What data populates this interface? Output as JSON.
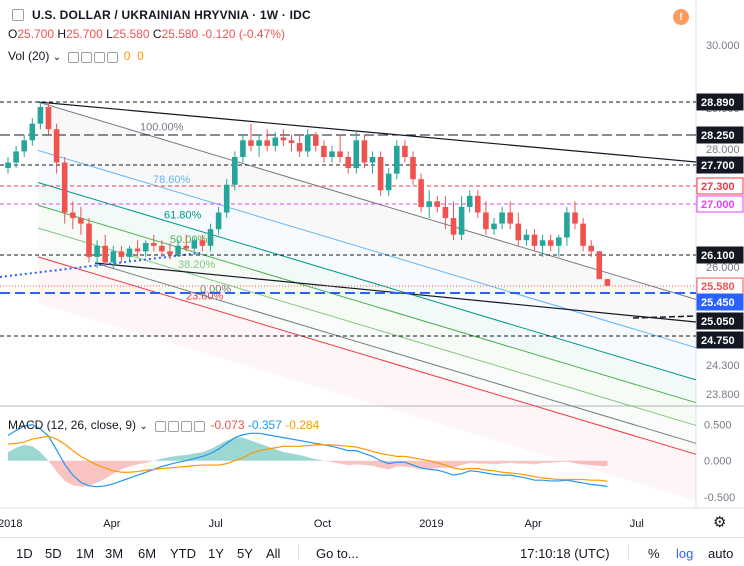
{
  "header": {
    "symbol": "U.S. DOLLAR / UKRAINIAN HRYVNIA · 1W · IDC",
    "ohlc": {
      "o_label": "O",
      "o": "25.700",
      "h_label": "H",
      "h": "25.700",
      "l_label": "L",
      "l": "25.580",
      "c_label": "C",
      "c": "25.580",
      "change": "-0.120 (-0.47%)"
    },
    "vol_label": "Vol (20)",
    "vol_values": [
      "0",
      "0"
    ],
    "alert_icon": "!"
  },
  "macd": {
    "label": "MACD (12, 26, close, 9)",
    "hist": "-0.073",
    "macd": "-0.357",
    "signal": "-0.284"
  },
  "colors": {
    "up": "#26a69a",
    "down": "#ef5350",
    "macd_line": "#2196f3",
    "signal_line": "#ff9800",
    "fib_0": "#787b86",
    "fib_236": "#f23645",
    "fib_382": "#81c784",
    "fib_5": "#4caf50",
    "fib_618": "#009688",
    "fib_786": "#64b5f6",
    "fib_1": "#787b86"
  },
  "toolbar": {
    "ranges": [
      "1D",
      "5D",
      "1M",
      "3M",
      "6M",
      "YTD",
      "1Y",
      "5Y",
      "All"
    ],
    "goto": "Go to...",
    "clock": "17:10:18 (UTC)",
    "percent": "%",
    "log": "log",
    "auto": "auto"
  },
  "chart_data": {
    "type": "candlestick",
    "title": "U.S. DOLLAR / UKRAINIAN HRYVNIA · 1W · IDC",
    "x_ticks": [
      {
        "label": "2018",
        "week": 0
      },
      {
        "label": "Apr",
        "week": 13
      },
      {
        "label": "Jul",
        "week": 26
      },
      {
        "label": "Oct",
        "week": 39
      },
      {
        "label": "2019",
        "week": 52
      },
      {
        "label": "Apr",
        "week": 65
      },
      {
        "label": "Jul",
        "week": 78
      }
    ],
    "y_ticks": [
      "30.000",
      "29.000",
      "28.000",
      "27.000",
      "26.000",
      "25.000",
      "24.300",
      "23.800"
    ],
    "ylim": [
      23.6,
      30.3
    ],
    "price_labels": [
      {
        "value": "28.890",
        "color": "#131722"
      },
      {
        "value": "28.250",
        "color": "#131722"
      },
      {
        "value": "27.700",
        "color": "#131722"
      },
      {
        "value": "27.300",
        "color": "#f23645"
      },
      {
        "value": "27.000",
        "color": "#e040fb"
      },
      {
        "value": "26.100",
        "color": "#131722"
      },
      {
        "value": "25.580",
        "color": "#ef5350"
      },
      {
        "value": "25.450",
        "color": "#2962ff"
      },
      {
        "value": "25.050",
        "color": "#131722"
      },
      {
        "value": "24.750",
        "color": "#131722"
      }
    ],
    "fib_levels": [
      {
        "label": "100.00%",
        "value": 28.89
      },
      {
        "label": "78.60%",
        "value": 28.02
      },
      {
        "label": "61.80%",
        "value": 27.44
      },
      {
        "label": "50.00%",
        "value": 27.03
      },
      {
        "label": "38.20%",
        "value": 26.62
      },
      {
        "label": "23.60%",
        "value": 26.1
      },
      {
        "label": "0.00%",
        "value": 25.3
      }
    ],
    "candles": [
      {
        "o": 27.7,
        "h": 27.9,
        "l": 27.6,
        "c": 27.8
      },
      {
        "o": 27.8,
        "h": 28.1,
        "l": 27.7,
        "c": 28.0
      },
      {
        "o": 28.0,
        "h": 28.3,
        "l": 27.9,
        "c": 28.2
      },
      {
        "o": 28.2,
        "h": 28.6,
        "l": 28.1,
        "c": 28.5
      },
      {
        "o": 28.5,
        "h": 28.9,
        "l": 28.4,
        "c": 28.8
      },
      {
        "o": 28.8,
        "h": 28.89,
        "l": 28.3,
        "c": 28.4
      },
      {
        "o": 28.4,
        "h": 28.5,
        "l": 27.6,
        "c": 27.8
      },
      {
        "o": 27.8,
        "h": 27.9,
        "l": 26.7,
        "c": 26.9
      },
      {
        "o": 26.9,
        "h": 27.1,
        "l": 26.6,
        "c": 26.8
      },
      {
        "o": 26.8,
        "h": 27.0,
        "l": 26.5,
        "c": 26.7
      },
      {
        "o": 26.7,
        "h": 26.8,
        "l": 26.0,
        "c": 26.1
      },
      {
        "o": 26.1,
        "h": 26.4,
        "l": 25.9,
        "c": 26.3
      },
      {
        "o": 26.3,
        "h": 26.5,
        "l": 25.95,
        "c": 26.0
      },
      {
        "o": 26.0,
        "h": 26.3,
        "l": 25.9,
        "c": 26.2
      },
      {
        "o": 26.2,
        "h": 26.3,
        "l": 26.0,
        "c": 26.1
      },
      {
        "o": 26.1,
        "h": 26.3,
        "l": 26.0,
        "c": 26.25
      },
      {
        "o": 26.25,
        "h": 26.4,
        "l": 26.1,
        "c": 26.2
      },
      {
        "o": 26.2,
        "h": 26.4,
        "l": 26.1,
        "c": 26.35
      },
      {
        "o": 26.35,
        "h": 26.5,
        "l": 26.2,
        "c": 26.3
      },
      {
        "o": 26.3,
        "h": 26.4,
        "l": 26.1,
        "c": 26.2
      },
      {
        "o": 26.2,
        "h": 26.35,
        "l": 26.05,
        "c": 26.15
      },
      {
        "o": 26.15,
        "h": 26.4,
        "l": 26.1,
        "c": 26.3
      },
      {
        "o": 26.3,
        "h": 26.5,
        "l": 26.2,
        "c": 26.25
      },
      {
        "o": 26.25,
        "h": 26.45,
        "l": 26.2,
        "c": 26.4
      },
      {
        "o": 26.4,
        "h": 26.5,
        "l": 26.2,
        "c": 26.3
      },
      {
        "o": 26.3,
        "h": 26.7,
        "l": 26.2,
        "c": 26.6
      },
      {
        "o": 26.6,
        "h": 27.0,
        "l": 26.5,
        "c": 26.9
      },
      {
        "o": 26.9,
        "h": 27.5,
        "l": 26.8,
        "c": 27.4
      },
      {
        "o": 27.4,
        "h": 28.0,
        "l": 27.3,
        "c": 27.9
      },
      {
        "o": 27.9,
        "h": 28.3,
        "l": 27.8,
        "c": 28.2
      },
      {
        "o": 28.2,
        "h": 28.5,
        "l": 28.0,
        "c": 28.1
      },
      {
        "o": 28.1,
        "h": 28.3,
        "l": 27.9,
        "c": 28.2
      },
      {
        "o": 28.2,
        "h": 28.4,
        "l": 28.0,
        "c": 28.1
      },
      {
        "o": 28.1,
        "h": 28.35,
        "l": 28.0,
        "c": 28.25
      },
      {
        "o": 28.25,
        "h": 28.4,
        "l": 28.1,
        "c": 28.2
      },
      {
        "o": 28.2,
        "h": 28.3,
        "l": 28.0,
        "c": 28.15
      },
      {
        "o": 28.15,
        "h": 28.3,
        "l": 27.9,
        "c": 28.0
      },
      {
        "o": 28.0,
        "h": 28.4,
        "l": 27.9,
        "c": 28.3
      },
      {
        "o": 28.3,
        "h": 28.35,
        "l": 28.0,
        "c": 28.1
      },
      {
        "o": 28.1,
        "h": 28.2,
        "l": 27.8,
        "c": 27.9
      },
      {
        "o": 27.9,
        "h": 28.1,
        "l": 27.8,
        "c": 28.0
      },
      {
        "o": 28.0,
        "h": 28.3,
        "l": 27.8,
        "c": 27.9
      },
      {
        "o": 27.9,
        "h": 28.0,
        "l": 27.6,
        "c": 27.7
      },
      {
        "o": 27.7,
        "h": 28.35,
        "l": 27.6,
        "c": 28.2
      },
      {
        "o": 28.2,
        "h": 28.3,
        "l": 27.7,
        "c": 27.8
      },
      {
        "o": 27.8,
        "h": 28.0,
        "l": 27.6,
        "c": 27.9
      },
      {
        "o": 27.9,
        "h": 28.0,
        "l": 27.2,
        "c": 27.3
      },
      {
        "o": 27.3,
        "h": 27.7,
        "l": 27.2,
        "c": 27.6
      },
      {
        "o": 27.6,
        "h": 28.2,
        "l": 27.5,
        "c": 28.1
      },
      {
        "o": 28.1,
        "h": 28.2,
        "l": 27.8,
        "c": 27.9
      },
      {
        "o": 27.9,
        "h": 28.0,
        "l": 27.4,
        "c": 27.5
      },
      {
        "o": 27.5,
        "h": 27.6,
        "l": 26.9,
        "c": 27.0
      },
      {
        "o": 27.0,
        "h": 27.3,
        "l": 26.8,
        "c": 27.1
      },
      {
        "o": 27.1,
        "h": 27.2,
        "l": 26.9,
        "c": 27.0
      },
      {
        "o": 27.0,
        "h": 27.2,
        "l": 26.6,
        "c": 26.8
      },
      {
        "o": 26.8,
        "h": 27.1,
        "l": 26.4,
        "c": 26.5
      },
      {
        "o": 26.5,
        "h": 27.2,
        "l": 26.4,
        "c": 27.0
      },
      {
        "o": 27.0,
        "h": 27.3,
        "l": 26.9,
        "c": 27.2
      },
      {
        "o": 27.2,
        "h": 27.3,
        "l": 26.8,
        "c": 26.9
      },
      {
        "o": 26.9,
        "h": 27.1,
        "l": 26.5,
        "c": 26.6
      },
      {
        "o": 26.6,
        "h": 26.8,
        "l": 26.5,
        "c": 26.7
      },
      {
        "o": 26.7,
        "h": 27.0,
        "l": 26.6,
        "c": 26.9
      },
      {
        "o": 26.9,
        "h": 27.1,
        "l": 26.6,
        "c": 26.7
      },
      {
        "o": 26.7,
        "h": 26.9,
        "l": 26.3,
        "c": 26.4
      },
      {
        "o": 26.4,
        "h": 26.6,
        "l": 26.3,
        "c": 26.5
      },
      {
        "o": 26.5,
        "h": 26.6,
        "l": 26.2,
        "c": 26.3
      },
      {
        "o": 26.3,
        "h": 26.5,
        "l": 26.1,
        "c": 26.4
      },
      {
        "o": 26.4,
        "h": 26.5,
        "l": 26.2,
        "c": 26.3
      },
      {
        "o": 26.3,
        "h": 26.5,
        "l": 26.1,
        "c": 26.45
      },
      {
        "o": 26.45,
        "h": 27.0,
        "l": 26.3,
        "c": 26.9
      },
      {
        "o": 26.9,
        "h": 27.1,
        "l": 26.6,
        "c": 26.7
      },
      {
        "o": 26.7,
        "h": 26.8,
        "l": 26.2,
        "c": 26.3
      },
      {
        "o": 26.3,
        "h": 26.4,
        "l": 26.1,
        "c": 26.2
      },
      {
        "o": 26.2,
        "h": 26.2,
        "l": 25.7,
        "c": 25.7
      },
      {
        "o": 25.7,
        "h": 25.7,
        "l": 25.58,
        "c": 25.58
      }
    ],
    "macd_series": {
      "hist": [
        0.12,
        0.18,
        0.22,
        0.2,
        0.12,
        0.0,
        -0.15,
        -0.28,
        -0.34,
        -0.36,
        -0.35,
        -0.3,
        -0.25,
        -0.18,
        -0.12,
        -0.08,
        -0.05,
        -0.03,
        0.0,
        0.03,
        0.05,
        0.07,
        0.08,
        0.1,
        0.12,
        0.16,
        0.22,
        0.28,
        0.32,
        0.32,
        0.28,
        0.24,
        0.2,
        0.16,
        0.12,
        0.1,
        0.08,
        0.05,
        0.02,
        0.0,
        -0.02,
        -0.04,
        -0.06,
        -0.05,
        -0.06,
        -0.07,
        -0.1,
        -0.12,
        -0.08,
        -0.08,
        -0.1,
        -0.12,
        -0.12,
        -0.1,
        -0.1,
        -0.1,
        -0.06,
        -0.03,
        -0.04,
        -0.04,
        -0.05,
        -0.04,
        -0.03,
        -0.04,
        -0.04,
        -0.05,
        -0.03,
        -0.03,
        -0.02,
        -0.01,
        -0.03,
        -0.05,
        -0.06,
        -0.07,
        -0.073
      ],
      "macd": [
        0.35,
        0.42,
        0.48,
        0.5,
        0.44,
        0.34,
        0.15,
        -0.05,
        -0.2,
        -0.3,
        -0.35,
        -0.36,
        -0.35,
        -0.32,
        -0.28,
        -0.24,
        -0.2,
        -0.16,
        -0.12,
        -0.08,
        -0.05,
        -0.02,
        0.0,
        0.03,
        0.06,
        0.1,
        0.16,
        0.24,
        0.32,
        0.36,
        0.38,
        0.38,
        0.36,
        0.34,
        0.32,
        0.3,
        0.28,
        0.26,
        0.24,
        0.22,
        0.2,
        0.17,
        0.14,
        0.14,
        0.1,
        0.06,
        0.0,
        -0.04,
        -0.02,
        -0.02,
        -0.06,
        -0.1,
        -0.12,
        -0.13,
        -0.16,
        -0.2,
        -0.18,
        -0.14,
        -0.15,
        -0.17,
        -0.19,
        -0.2,
        -0.2,
        -0.22,
        -0.24,
        -0.27,
        -0.27,
        -0.28,
        -0.28,
        -0.27,
        -0.29,
        -0.31,
        -0.33,
        -0.34,
        -0.357
      ],
      "signal": [
        0.23,
        0.24,
        0.26,
        0.3,
        0.32,
        0.34,
        0.3,
        0.23,
        0.14,
        0.06,
        0.0,
        -0.06,
        -0.1,
        -0.14,
        -0.16,
        -0.16,
        -0.15,
        -0.13,
        -0.12,
        -0.11,
        -0.1,
        -0.09,
        -0.08,
        -0.07,
        -0.06,
        -0.06,
        -0.06,
        -0.04,
        0.0,
        0.04,
        0.1,
        0.14,
        0.16,
        0.18,
        0.2,
        0.2,
        0.2,
        0.21,
        0.22,
        0.22,
        0.22,
        0.21,
        0.2,
        0.19,
        0.16,
        0.13,
        0.1,
        0.08,
        0.06,
        0.06,
        0.04,
        0.02,
        0.0,
        -0.03,
        -0.06,
        -0.1,
        -0.12,
        -0.11,
        -0.11,
        -0.13,
        -0.14,
        -0.16,
        -0.17,
        -0.18,
        -0.2,
        -0.22,
        -0.24,
        -0.25,
        -0.26,
        -0.26,
        -0.26,
        -0.26,
        -0.27,
        -0.27,
        -0.284
      ]
    },
    "macd_ticks": [
      "0.500",
      "0.000",
      "-0.500"
    ],
    "macd_ylim": [
      -0.6,
      0.62
    ]
  }
}
